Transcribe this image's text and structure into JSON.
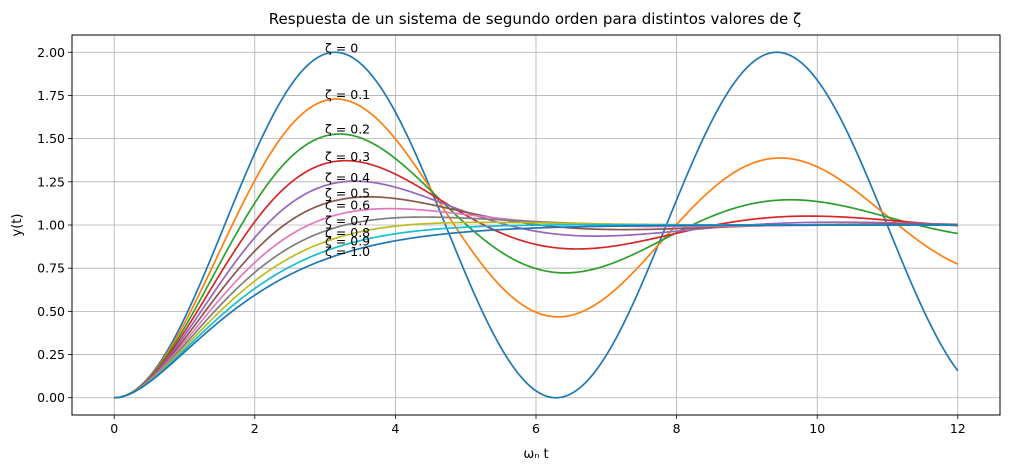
{
  "chart_data": {
    "type": "line",
    "title": "Respuesta de un sistema de segundo orden para distintos valores de ζ",
    "xlabel": "ωₙ t",
    "ylabel": "y(t)",
    "xlim": [
      -0.6,
      12.6
    ],
    "ylim": [
      -0.1,
      2.1
    ],
    "xticks": [
      0,
      2,
      4,
      6,
      8,
      10,
      12
    ],
    "xtick_labels": [
      "0",
      "2",
      "4",
      "6",
      "8",
      "10",
      "12"
    ],
    "yticks": [
      0.0,
      0.25,
      0.5,
      0.75,
      1.0,
      1.25,
      1.5,
      1.75,
      2.0
    ],
    "ytick_labels": [
      "0.00",
      "0.25",
      "0.50",
      "0.75",
      "1.00",
      "1.25",
      "1.50",
      "1.75",
      "2.00"
    ],
    "grid": true,
    "legend": "none",
    "x_range": [
      0,
      12
    ],
    "series": [
      {
        "zeta": 0.0,
        "color": "#1f77b4",
        "annotation": "ζ = 0",
        "annotation_y": 2.0
      },
      {
        "zeta": 0.1,
        "color": "#ff7f0e",
        "annotation": "ζ = 0.1",
        "annotation_y": 1.73
      },
      {
        "zeta": 0.2,
        "color": "#2ca02c",
        "annotation": "ζ = 0.2",
        "annotation_y": 1.53
      },
      {
        "zeta": 0.3,
        "color": "#d62728",
        "annotation": "ζ = 0.3",
        "annotation_y": 1.37
      },
      {
        "zeta": 0.4,
        "color": "#9467bd",
        "annotation": "ζ = 0.4",
        "annotation_y": 1.25
      },
      {
        "zeta": 0.5,
        "color": "#8c564b",
        "annotation": "ζ = 0.5",
        "annotation_y": 1.16
      },
      {
        "zeta": 0.6,
        "color": "#e377c2",
        "annotation": "ζ = 0.6",
        "annotation_y": 1.09
      },
      {
        "zeta": 0.7,
        "color": "#7f7f7f",
        "annotation": "ζ = 0.7",
        "annotation_y": 1.0
      },
      {
        "zeta": 0.8,
        "color": "#bcbd22",
        "annotation": "ζ = 0.8",
        "annotation_y": 0.93
      },
      {
        "zeta": 0.9,
        "color": "#17becf",
        "annotation": "ζ = 0.9",
        "annotation_y": 0.88
      },
      {
        "zeta": 1.0,
        "color": "#1f77b4",
        "annotation": "ζ = 1.0",
        "annotation_y": 0.82
      }
    ]
  }
}
